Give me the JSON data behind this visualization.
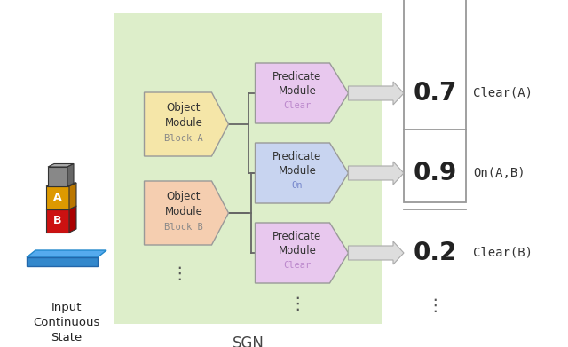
{
  "bg_color": "#ffffff",
  "sgn_bg_color": "#ddeeca",
  "obj_module_A_color": "#f5e6a8",
  "obj_module_B_color": "#f5ceb0",
  "pred_module_clear_color": "#e8c8ee",
  "pred_module_on_color": "#c8d4f0",
  "output_box_color": "#ffffff",
  "output_box_edge": "#999999",
  "title": "SGN",
  "input_label": "Input\nContinuous\nState",
  "obj_A_label": "Object\nModule",
  "obj_A_sub": "Block A",
  "obj_B_label": "Object\nModule",
  "obj_B_sub": "Block B",
  "pred_clear1_label": "Predicate\nModule",
  "pred_clear1_sub": "Clear",
  "pred_on_label": "Predicate\nModule",
  "pred_on_sub": "On",
  "pred_clear2_label": "Predicate\nModule",
  "pred_clear2_sub": "Clear",
  "output_values": [
    "0.7",
    "0.9",
    "0.2"
  ],
  "output_labels": [
    "Clear(A)",
    "On(A,B)",
    "Clear(B)"
  ],
  "arrow_fill": "#dddddd",
  "arrow_edge": "#aaaaaa",
  "line_color": "#666666",
  "dot_color": "#555555"
}
